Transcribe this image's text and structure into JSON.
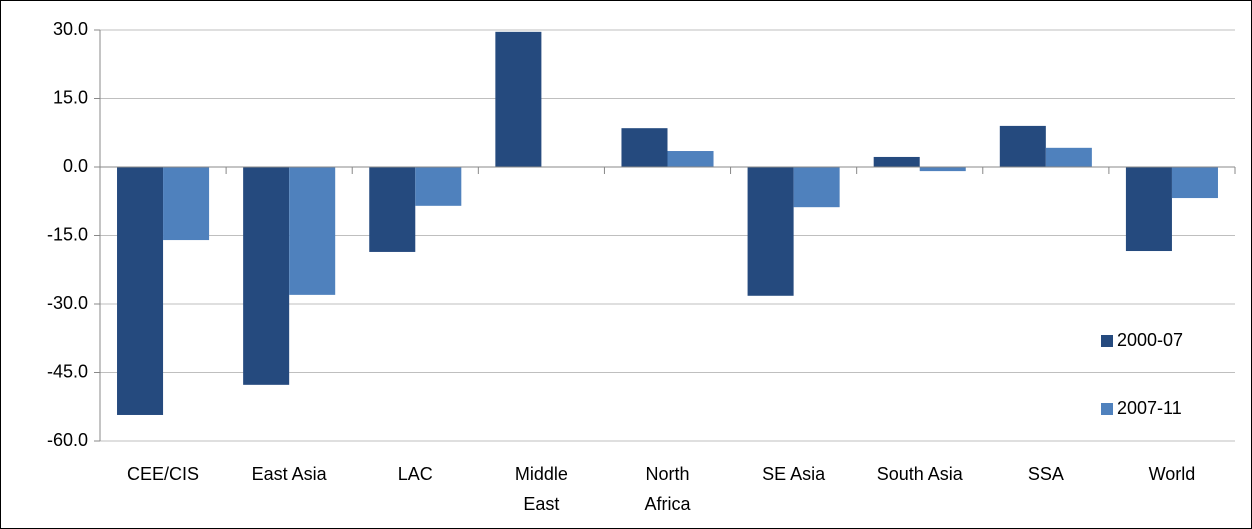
{
  "chart_data": {
    "type": "bar",
    "categories": [
      "CEE/CIS",
      "East Asia",
      "LAC",
      "Middle East",
      "North Africa",
      "SE Asia",
      "South Asia",
      "SSA",
      "World"
    ],
    "series": [
      {
        "name": "2000-07",
        "color": "#254a7e",
        "values": [
          -54.3,
          -47.7,
          -18.6,
          29.6,
          8.5,
          -28.2,
          2.2,
          9.0,
          -18.4
        ]
      },
      {
        "name": "2007-11",
        "color": "#4f81bd",
        "values": [
          -16.0,
          -28.0,
          -8.5,
          0,
          3.5,
          -8.8,
          -0.9,
          4.2,
          -6.8
        ]
      }
    ],
    "ylim": [
      -60,
      30
    ],
    "yticks": [
      {
        "value": -60,
        "label": "-60.0"
      },
      {
        "value": -45,
        "label": "-45.0"
      },
      {
        "value": -30,
        "label": "-30.0"
      },
      {
        "value": -15,
        "label": "-15.0"
      },
      {
        "value": 0,
        "label": "0.0"
      },
      {
        "value": 15,
        "label": "15.0"
      },
      {
        "value": 30,
        "label": "30.0"
      }
    ],
    "grid": true,
    "legend": "right"
  }
}
